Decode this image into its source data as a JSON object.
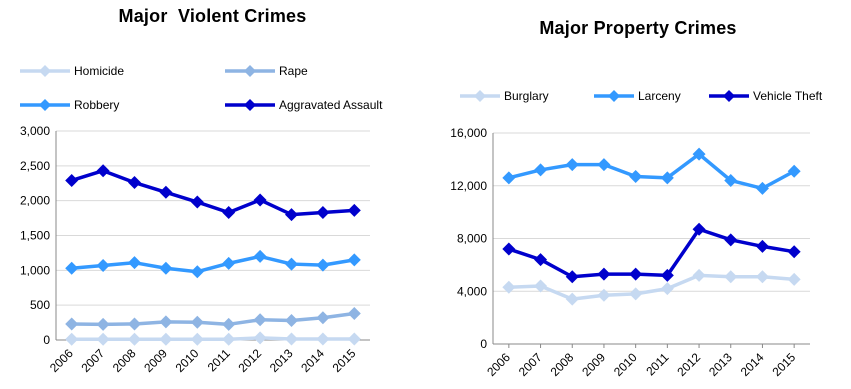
{
  "chart_data": [
    {
      "type": "line",
      "title": "Major  Violent Crimes",
      "categories": [
        "2006",
        "2007",
        "2008",
        "2009",
        "2010",
        "2011",
        "2012",
        "2013",
        "2014",
        "2015"
      ],
      "yticks": [
        "0",
        "500",
        "1,000",
        "1,500",
        "2,000",
        "2,500",
        "3,000"
      ],
      "ylim": [
        0,
        3000
      ],
      "legend_position": "top",
      "series": [
        {
          "name": "Homicide",
          "color": "#C6D9F1",
          "values": [
            10,
            10,
            10,
            10,
            10,
            10,
            30,
            15,
            15,
            15
          ]
        },
        {
          "name": "Rape",
          "color": "#8EB4E3",
          "values": [
            230,
            225,
            230,
            260,
            255,
            225,
            290,
            280,
            320,
            380
          ]
        },
        {
          "name": "Robbery",
          "color": "#3399FF",
          "values": [
            1030,
            1070,
            1110,
            1030,
            980,
            1100,
            1200,
            1090,
            1075,
            1150
          ]
        },
        {
          "name": "Aggravated Assault",
          "color": "#0000CC",
          "values": [
            2290,
            2430,
            2260,
            2120,
            1980,
            1830,
            2010,
            1800,
            1830,
            1860
          ]
        }
      ]
    },
    {
      "type": "line",
      "title": "Major Property Crimes",
      "categories": [
        "2006",
        "2007",
        "2008",
        "2009",
        "2010",
        "2011",
        "2012",
        "2013",
        "2014",
        "2015"
      ],
      "yticks": [
        "0",
        "4,000",
        "8,000",
        "12,000",
        "16,000"
      ],
      "ylim": [
        0,
        16000
      ],
      "legend_position": "top",
      "series": [
        {
          "name": "Burglary",
          "color": "#C6D9F1",
          "values": [
            4300,
            4400,
            3400,
            3700,
            3800,
            4200,
            5200,
            5100,
            5100,
            4900
          ]
        },
        {
          "name": "Larceny",
          "color": "#3399FF",
          "values": [
            12600,
            13200,
            13600,
            13600,
            12700,
            12600,
            14400,
            12400,
            11800,
            13100
          ]
        },
        {
          "name": "Vehicle Theft",
          "color": "#0000CC",
          "values": [
            7200,
            6400,
            5100,
            5300,
            5300,
            5200,
            8700,
            7900,
            7400,
            7000
          ]
        }
      ]
    }
  ]
}
